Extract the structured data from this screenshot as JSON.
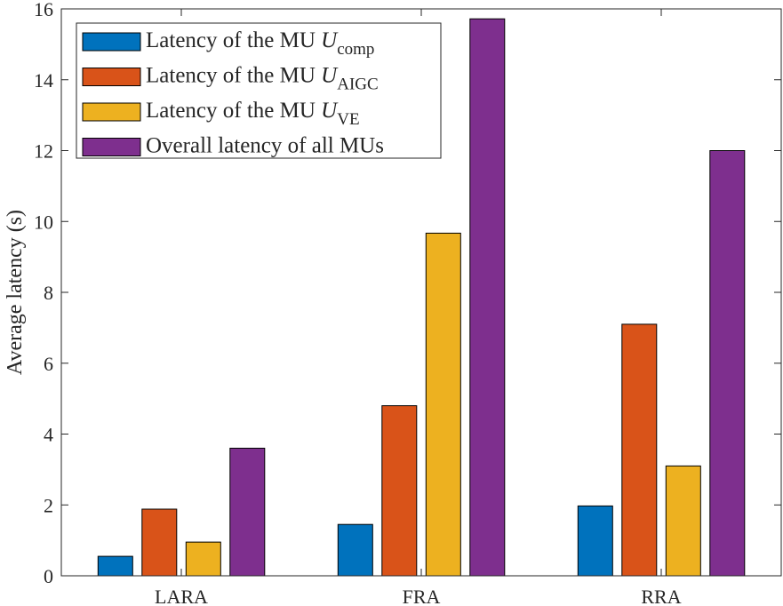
{
  "chart_data": {
    "type": "bar",
    "title": "",
    "xlabel": "",
    "ylabel": "Average latency (s)",
    "ylim": [
      0,
      16
    ],
    "yticks": [
      0,
      2,
      4,
      6,
      8,
      10,
      12,
      14,
      16
    ],
    "categories": [
      "LARA",
      "FRA",
      "RRA"
    ],
    "legend_position": "top-left",
    "grid": false,
    "series": [
      {
        "name": "Latency of the MU U_comp",
        "label_main": "Latency of the MU ",
        "label_var": "U",
        "label_sub": "comp",
        "color": "#0072BD",
        "values": [
          0.55,
          1.45,
          1.97
        ]
      },
      {
        "name": "Latency of the MU U_AIGC",
        "label_main": "Latency of the MU ",
        "label_var": "U",
        "label_sub": "AIGC",
        "color": "#D95319",
        "values": [
          1.88,
          4.8,
          7.1
        ]
      },
      {
        "name": "Latency of the MU U_VE",
        "label_main": "Latency of the MU ",
        "label_var": "U",
        "label_sub": "VE",
        "color": "#EDB120",
        "values": [
          0.95,
          9.67,
          3.1
        ]
      },
      {
        "name": "Overall latency of all MUs",
        "label_main": "Overall latency of all MUs",
        "label_var": "",
        "label_sub": "",
        "color": "#7E2F8E",
        "values": [
          3.6,
          15.72,
          12.0
        ]
      }
    ]
  }
}
